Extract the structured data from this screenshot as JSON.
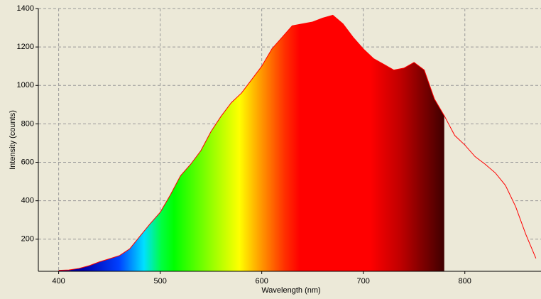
{
  "chart_data": {
    "type": "area",
    "x_label": "Wavelength (nm)",
    "y_label": "Intensity (counts)",
    "x": [
      400,
      410,
      420,
      430,
      440,
      450,
      460,
      470,
      480,
      490,
      500,
      510,
      520,
      530,
      540,
      550,
      560,
      570,
      580,
      590,
      600,
      610,
      620,
      630,
      640,
      650,
      660,
      670,
      680,
      690,
      700,
      710,
      720,
      730,
      740,
      750,
      760,
      770,
      780,
      790,
      800,
      810,
      820,
      830,
      840,
      850,
      860,
      870
    ],
    "series": [
      {
        "color": "#ff0000",
        "values": [
          38,
          40,
          48,
          62,
          82,
          98,
          115,
          150,
          215,
          280,
          340,
          430,
          530,
          590,
          660,
          760,
          840,
          910,
          960,
          1030,
          1100,
          1190,
          1250,
          1310,
          1320,
          1330,
          1350,
          1365,
          1320,
          1250,
          1190,
          1140,
          1110,
          1080,
          1090,
          1120,
          1080,
          930,
          840,
          740,
          690,
          630,
          590,
          545,
          480,
          370,
          226,
          100
        ]
      }
    ],
    "xlim": [
      380,
      875
    ],
    "xticks": [
      400,
      500,
      600,
      700,
      800
    ],
    "ylim": [
      33,
      1400
    ],
    "yticks": [
      200,
      400,
      600,
      800,
      1000,
      1200,
      1400
    ],
    "grid": true
  }
}
